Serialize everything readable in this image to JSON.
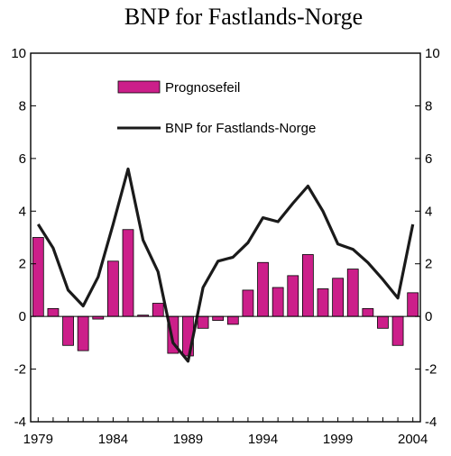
{
  "chart_data": {
    "type": "bar",
    "title": "BNP for Fastlands-Norge",
    "xlabel": "",
    "ylabel": "",
    "ylim": [
      -4,
      10
    ],
    "yticks": [
      -4,
      -2,
      0,
      2,
      4,
      6,
      8,
      10
    ],
    "xtick_labels": [
      "1979",
      "1984",
      "1989",
      "1994",
      "1999",
      "2004"
    ],
    "x": [
      1979,
      1980,
      1981,
      1982,
      1983,
      1984,
      1985,
      1986,
      1987,
      1988,
      1989,
      1990,
      1991,
      1992,
      1993,
      1994,
      1995,
      1996,
      1997,
      1998,
      1999,
      2000,
      2001,
      2002,
      2003,
      2004
    ],
    "grid": false,
    "legend_position": "top-center",
    "series": [
      {
        "name": "Prognosefeil",
        "type": "bar",
        "color": "#cc1f8a",
        "values": [
          3.0,
          0.3,
          -1.1,
          -1.3,
          -0.1,
          2.1,
          3.3,
          0.05,
          0.5,
          -1.4,
          -1.5,
          -0.45,
          -0.15,
          -0.3,
          1.0,
          2.05,
          1.1,
          1.55,
          2.35,
          1.05,
          1.45,
          1.8,
          0.3,
          -0.45,
          -1.1,
          0.9
        ]
      },
      {
        "name": "BNP for Fastlands-Norge",
        "type": "line",
        "color": "#1a1a1a",
        "values": [
          3.5,
          2.6,
          1.0,
          0.4,
          1.5,
          3.5,
          5.6,
          2.9,
          1.7,
          -1.0,
          -1.7,
          1.1,
          2.1,
          2.25,
          2.8,
          3.75,
          3.6,
          4.3,
          4.95,
          4.0,
          2.75,
          2.55,
          2.05,
          1.4,
          0.7,
          3.5
        ]
      }
    ]
  }
}
